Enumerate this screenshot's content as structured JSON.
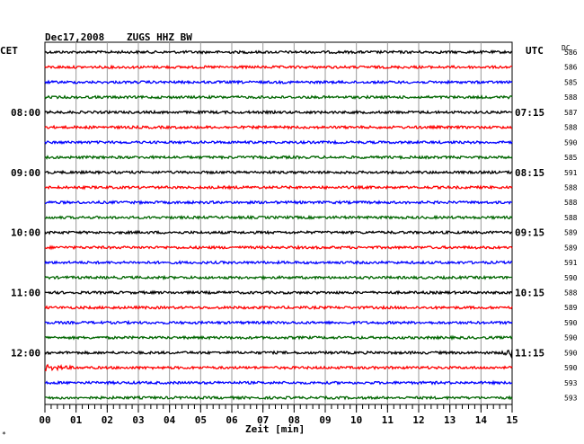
{
  "header": {
    "date": "Dec17,2008",
    "station": "ZUGS HHZ BW",
    "left_tz": "CET",
    "right_tz": "UTC",
    "dc_label": "DC"
  },
  "chart_data": {
    "type": "line",
    "title": "Dec17,2008   ZUGS HHZ BW",
    "xlabel": "Zeit [min]",
    "x_ticks": [
      "00",
      "01",
      "02",
      "03",
      "04",
      "05",
      "06",
      "07",
      "08",
      "09",
      "10",
      "11",
      "12",
      "13",
      "14",
      "15"
    ],
    "xlim": [
      0,
      15
    ],
    "trace_count": 24,
    "trace_interval_min": 15,
    "trace_colors": [
      "#000000",
      "#ff0000",
      "#0000ff",
      "#006600"
    ],
    "left_hour_labels": [
      {
        "trace": 4,
        "label": "08:00"
      },
      {
        "trace": 8,
        "label": "09:00"
      },
      {
        "trace": 12,
        "label": "10:00"
      },
      {
        "trace": 16,
        "label": "11:00"
      },
      {
        "trace": 20,
        "label": "12:00"
      }
    ],
    "right_hour_labels": [
      {
        "trace": 4,
        "label": "07:15"
      },
      {
        "trace": 8,
        "label": "08:15"
      },
      {
        "trace": 12,
        "label": "09:15"
      },
      {
        "trace": 16,
        "label": "10:15"
      },
      {
        "trace": 20,
        "label": "11:15"
      }
    ],
    "dc_values": [
      "586",
      "586",
      "585",
      "588",
      "587",
      "588",
      "590",
      "585",
      "591",
      "588",
      "588",
      "588",
      "589",
      "589",
      "591",
      "590",
      "588",
      "589",
      "590",
      "590",
      "590",
      "590",
      "593",
      "593"
    ],
    "events": [
      {
        "trace": 20,
        "start_min": 14.7,
        "end_min": 15,
        "amplitude": 3.0
      },
      {
        "trace": 21,
        "start_min": 0,
        "end_min": 1.0,
        "amplitude": 2.0
      }
    ]
  },
  "footer": {
    "mark": "*"
  }
}
